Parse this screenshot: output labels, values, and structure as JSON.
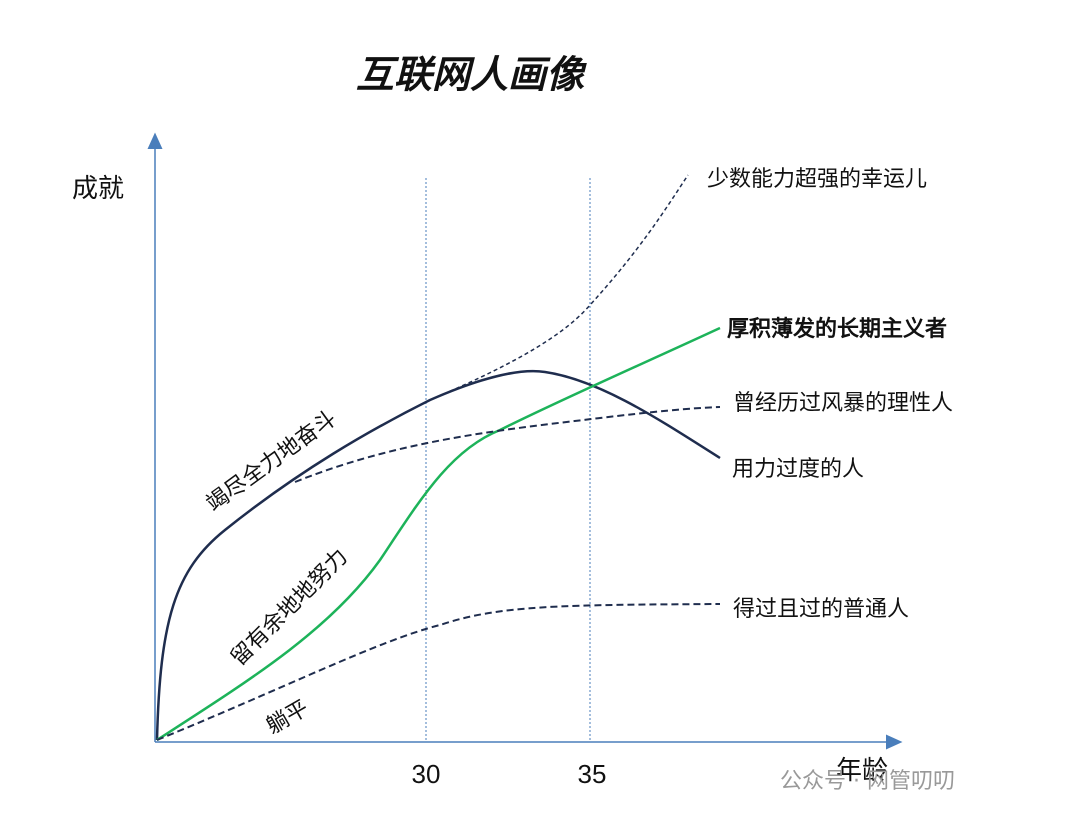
{
  "title": "互联网人画像",
  "y_axis_label": "成就",
  "x_axis_label": "年龄",
  "x_ticks": [
    "30",
    "35"
  ],
  "curve_labels": {
    "lucky": "少数能力超强的幸运儿",
    "long_term": "厚积薄发的长期主义者",
    "rational": "曾经历过风暴的理性人",
    "overworked": "用力过度的人",
    "ordinary": "得过且过的普通人"
  },
  "stage_labels": {
    "all_out": "竭尽全力地奋斗",
    "reserved": "留有余地地努力",
    "flat": "躺平"
  },
  "watermark": "公众号 · 网管叨叨"
}
